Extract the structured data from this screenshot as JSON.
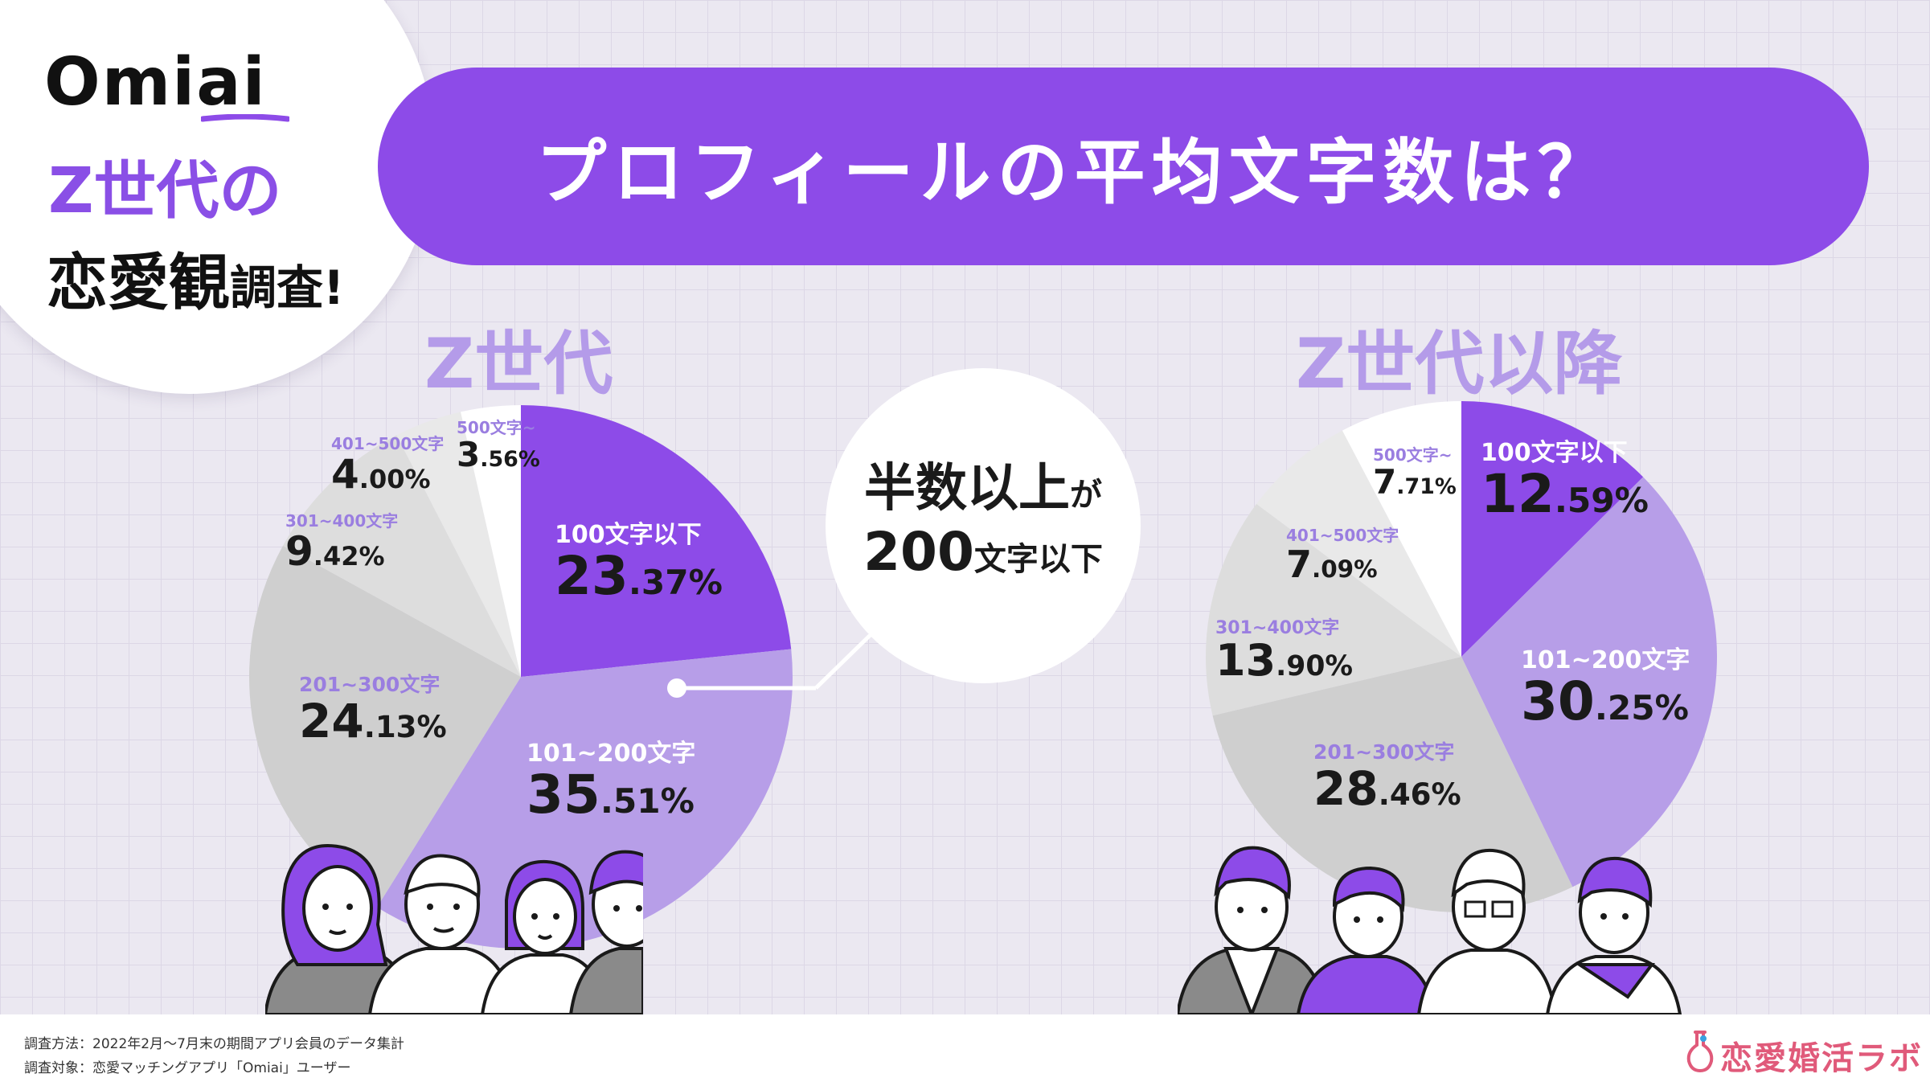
{
  "badge": {
    "brand": "Omiai",
    "line1": "Z世代の",
    "line2_main": "恋愛観",
    "line2_small": "調査!"
  },
  "title": "プロフィールの平均文字数は？",
  "callout": {
    "line1_main": "半数以上",
    "line1_small": "が",
    "line2_main": "200",
    "line2_small": "文字以下"
  },
  "chart_data": [
    {
      "type": "pie",
      "title": "Z世代",
      "start_angle": "top",
      "direction": "clockwise",
      "slices": [
        {
          "label": "100文字以下",
          "value": 23.37,
          "int": "23",
          "dec": ".37%",
          "color": "#8d4be8"
        },
        {
          "label": "101~200文字",
          "value": 35.51,
          "int": "35",
          "dec": ".51%",
          "color": "#b79ee8"
        },
        {
          "label": "201~300文字",
          "value": 24.13,
          "int": "24",
          "dec": ".13%",
          "color": "#cfcfcf"
        },
        {
          "label": "301~400文字",
          "value": 9.42,
          "int": "9",
          "dec": ".42%",
          "color": "#dddddd"
        },
        {
          "label": "401~500文字",
          "value": 4.0,
          "int": "4",
          "dec": ".00%",
          "color": "#e9e9e9"
        },
        {
          "label": "500文字~",
          "value": 3.56,
          "int": "3",
          "dec": ".56%",
          "color": "#ffffff"
        }
      ]
    },
    {
      "type": "pie",
      "title": "Z世代以降",
      "start_angle": "top",
      "direction": "clockwise",
      "slices": [
        {
          "label": "100文字以下",
          "value": 12.59,
          "int": "12",
          "dec": ".59%",
          "color": "#8d4be8"
        },
        {
          "label": "101~200文字",
          "value": 30.25,
          "int": "30",
          "dec": ".25%",
          "color": "#b79ee8"
        },
        {
          "label": "201~300文字",
          "value": 28.46,
          "int": "28",
          "dec": ".46%",
          "color": "#cfcfcf"
        },
        {
          "label": "301~400文字",
          "value": 13.9,
          "int": "13",
          "dec": ".90%",
          "color": "#dddddd"
        },
        {
          "label": "401~500文字",
          "value": 7.09,
          "int": "7",
          "dec": ".09%",
          "color": "#e9e9e9"
        },
        {
          "label": "500文字~",
          "value": 7.71,
          "int": "7",
          "dec": ".71%",
          "color": "#ffffff"
        }
      ]
    }
  ],
  "footer": {
    "note1": "調査方法：2022年2月～7月末の期間アプリ会員のデータ集計",
    "note2": "調査対象：恋愛マッチングアプリ「Omiai」ユーザー",
    "logo": "恋愛婚活ラボ"
  }
}
